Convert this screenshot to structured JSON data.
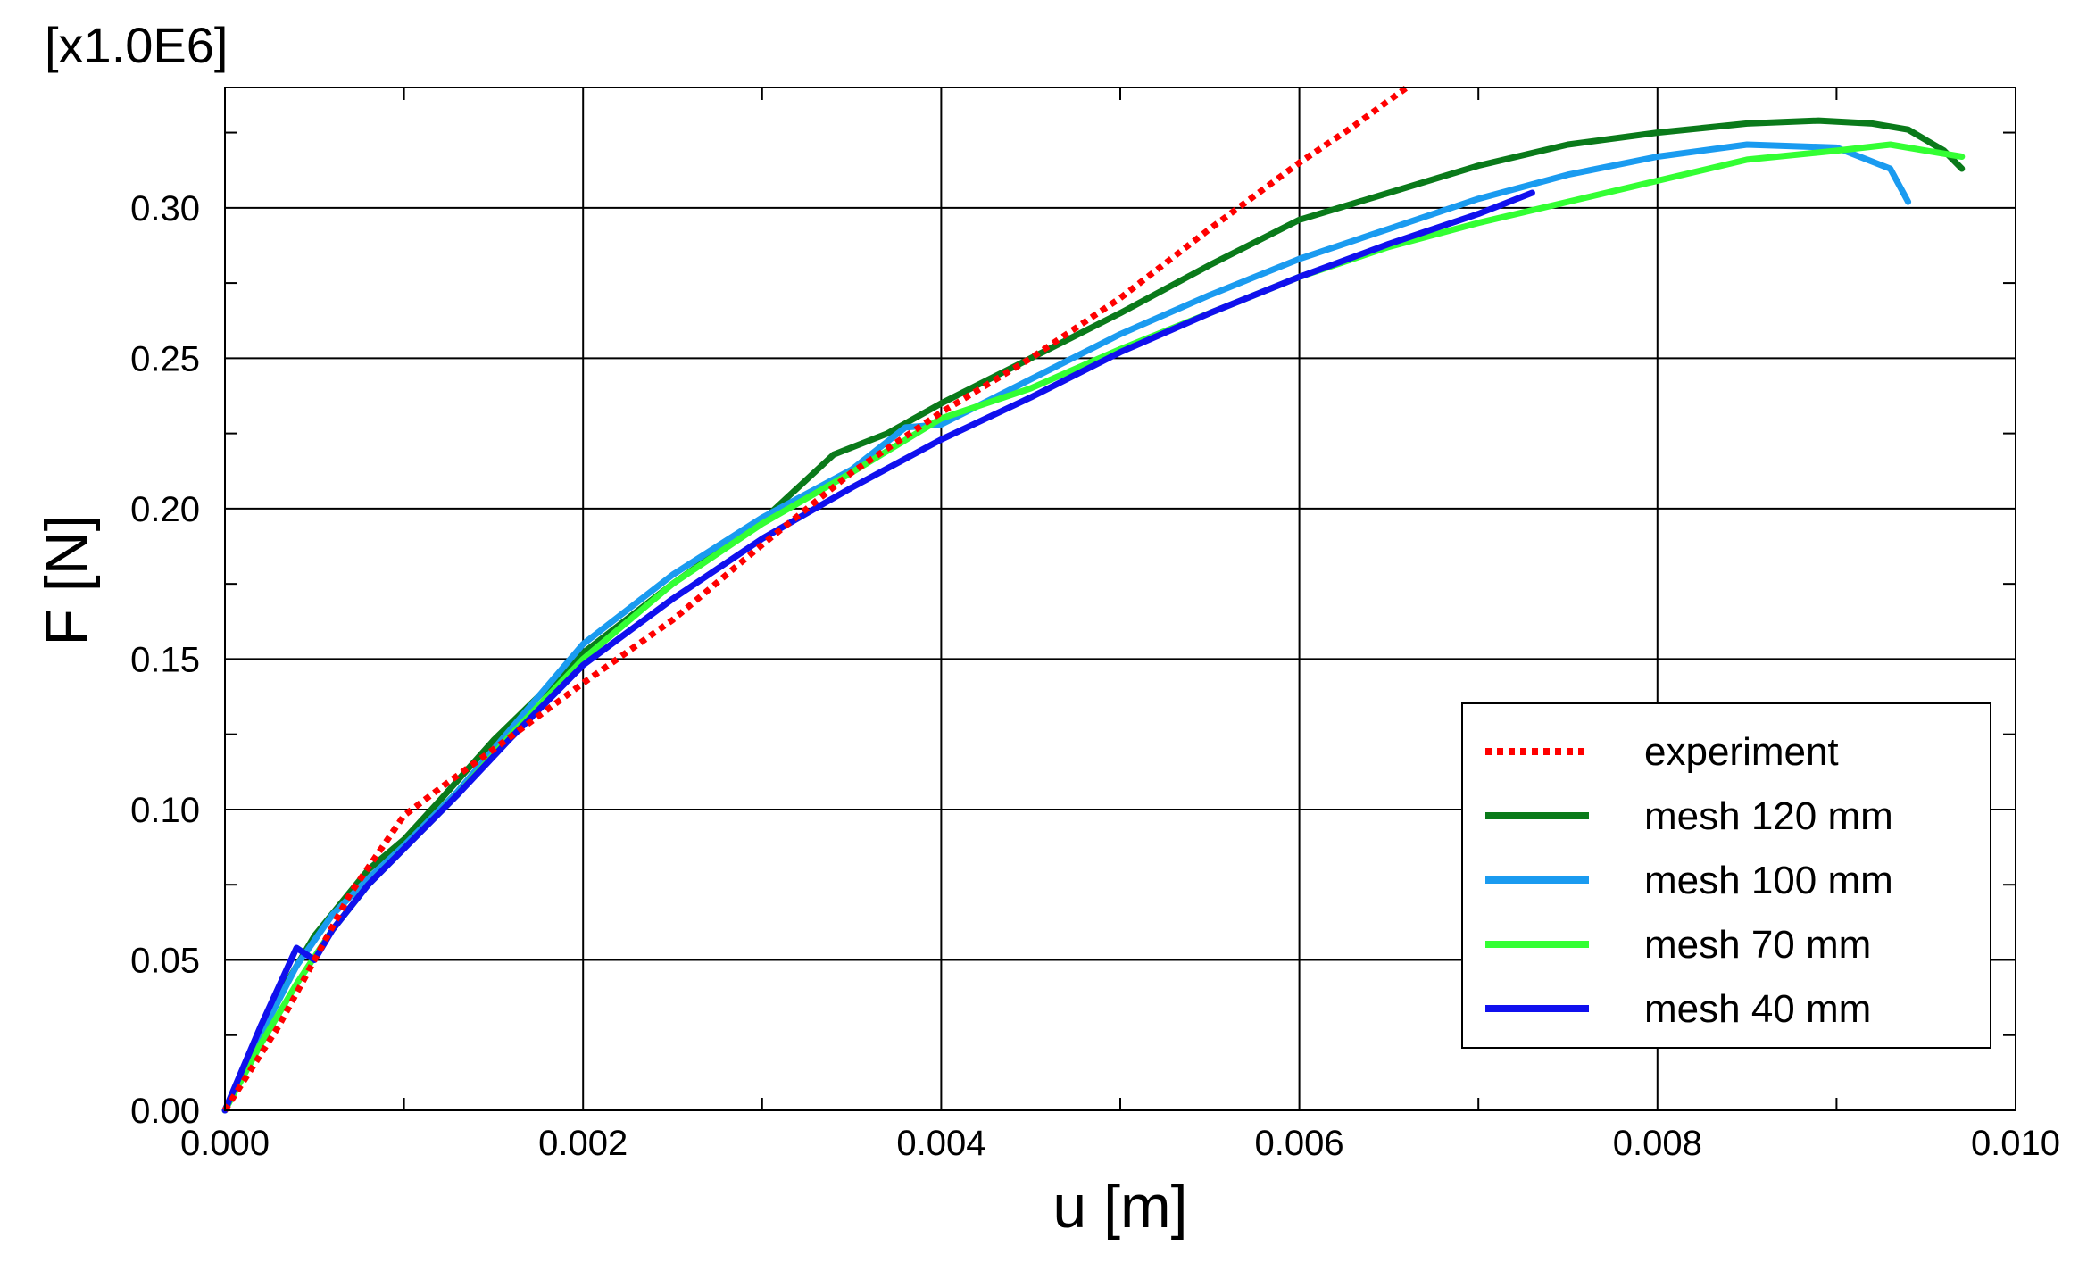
{
  "chart_data": {
    "type": "line",
    "title": "",
    "xlabel": "u [m]",
    "ylabel": "F [N]",
    "y_multiplier_label": "[x1.0E6]",
    "xlim": [
      0,
      0.01
    ],
    "ylim": [
      0,
      0.34
    ],
    "x_ticks": [
      0.0,
      0.002,
      0.004,
      0.006,
      0.008,
      0.01
    ],
    "x_tick_labels": [
      "0.000",
      "0.002",
      "0.004",
      "0.006",
      "0.008",
      "0.010"
    ],
    "y_ticks": [
      0.0,
      0.05,
      0.1,
      0.15,
      0.2,
      0.25,
      0.3
    ],
    "y_tick_labels": [
      "0.00",
      "0.05",
      "0.10",
      "0.15",
      "0.20",
      "0.25",
      "0.30"
    ],
    "grid": true,
    "legend_position": "bottom-right",
    "series": [
      {
        "name": "experiment",
        "color": "#ff0000",
        "dashed": true,
        "x": [
          0.0,
          0.0003,
          0.0005,
          0.0007,
          0.001,
          0.0012,
          0.0015,
          0.002,
          0.0025,
          0.003,
          0.0035,
          0.004,
          0.0045,
          0.005,
          0.0055,
          0.006,
          0.0063,
          0.0066
        ],
        "y": [
          0.0,
          0.028,
          0.05,
          0.072,
          0.098,
          0.107,
          0.12,
          0.142,
          0.163,
          0.188,
          0.212,
          0.232,
          0.25,
          0.27,
          0.293,
          0.315,
          0.327,
          0.34
        ]
      },
      {
        "name": "mesh 120 mm",
        "color": "#0a7a1a",
        "dashed": false,
        "x": [
          0.0,
          0.0001,
          0.0002,
          0.0003,
          0.0005,
          0.0008,
          0.001,
          0.0012,
          0.0015,
          0.002,
          0.0025,
          0.003,
          0.0034,
          0.0037,
          0.004,
          0.0045,
          0.005,
          0.0055,
          0.006,
          0.0065,
          0.007,
          0.0075,
          0.008,
          0.0085,
          0.0089,
          0.0092,
          0.0094,
          0.0096,
          0.0097
        ],
        "y": [
          0.0,
          0.012,
          0.025,
          0.038,
          0.058,
          0.08,
          0.09,
          0.103,
          0.123,
          0.152,
          0.175,
          0.196,
          0.218,
          0.225,
          0.235,
          0.25,
          0.265,
          0.281,
          0.296,
          0.305,
          0.314,
          0.321,
          0.325,
          0.328,
          0.329,
          0.328,
          0.326,
          0.319,
          0.313
        ]
      },
      {
        "name": "mesh 100 mm",
        "color": "#1a9bf0",
        "dashed": false,
        "x": [
          0.0,
          0.0002,
          0.0004,
          0.0006,
          0.0008,
          0.001,
          0.0013,
          0.0016,
          0.002,
          0.0025,
          0.003,
          0.0035,
          0.0038,
          0.004,
          0.0045,
          0.005,
          0.0055,
          0.006,
          0.0065,
          0.007,
          0.0075,
          0.008,
          0.0085,
          0.009,
          0.0093,
          0.0094
        ],
        "y": [
          0.0,
          0.025,
          0.048,
          0.065,
          0.077,
          0.088,
          0.106,
          0.127,
          0.155,
          0.178,
          0.197,
          0.213,
          0.227,
          0.228,
          0.243,
          0.258,
          0.271,
          0.283,
          0.293,
          0.303,
          0.311,
          0.317,
          0.321,
          0.32,
          0.313,
          0.302
        ]
      },
      {
        "name": "mesh 70 mm",
        "color": "#33ff33",
        "dashed": false,
        "x": [
          0.0,
          0.0002,
          0.0004,
          0.0006,
          0.0008,
          0.001,
          0.0013,
          0.0016,
          0.002,
          0.0025,
          0.003,
          0.0035,
          0.004,
          0.0045,
          0.005,
          0.0055,
          0.006,
          0.0065,
          0.007,
          0.0075,
          0.008,
          0.0085,
          0.009,
          0.0093,
          0.0095,
          0.0097
        ],
        "y": [
          0.0,
          0.022,
          0.042,
          0.06,
          0.075,
          0.087,
          0.105,
          0.125,
          0.15,
          0.175,
          0.195,
          0.212,
          0.23,
          0.24,
          0.253,
          0.265,
          0.277,
          0.287,
          0.295,
          0.302,
          0.309,
          0.316,
          0.319,
          0.321,
          0.319,
          0.317
        ]
      },
      {
        "name": "mesh 40 mm",
        "color": "#1010ee",
        "dashed": false,
        "x": [
          0.0,
          0.0002,
          0.0004,
          0.0005,
          0.0006,
          0.0008,
          0.001,
          0.0013,
          0.0016,
          0.002,
          0.0025,
          0.003,
          0.0035,
          0.004,
          0.0045,
          0.005,
          0.0055,
          0.006,
          0.0065,
          0.007,
          0.0073
        ],
        "y": [
          0.0,
          0.028,
          0.054,
          0.05,
          0.06,
          0.075,
          0.087,
          0.105,
          0.124,
          0.148,
          0.17,
          0.19,
          0.207,
          0.223,
          0.237,
          0.252,
          0.265,
          0.277,
          0.288,
          0.298,
          0.305
        ]
      }
    ]
  }
}
